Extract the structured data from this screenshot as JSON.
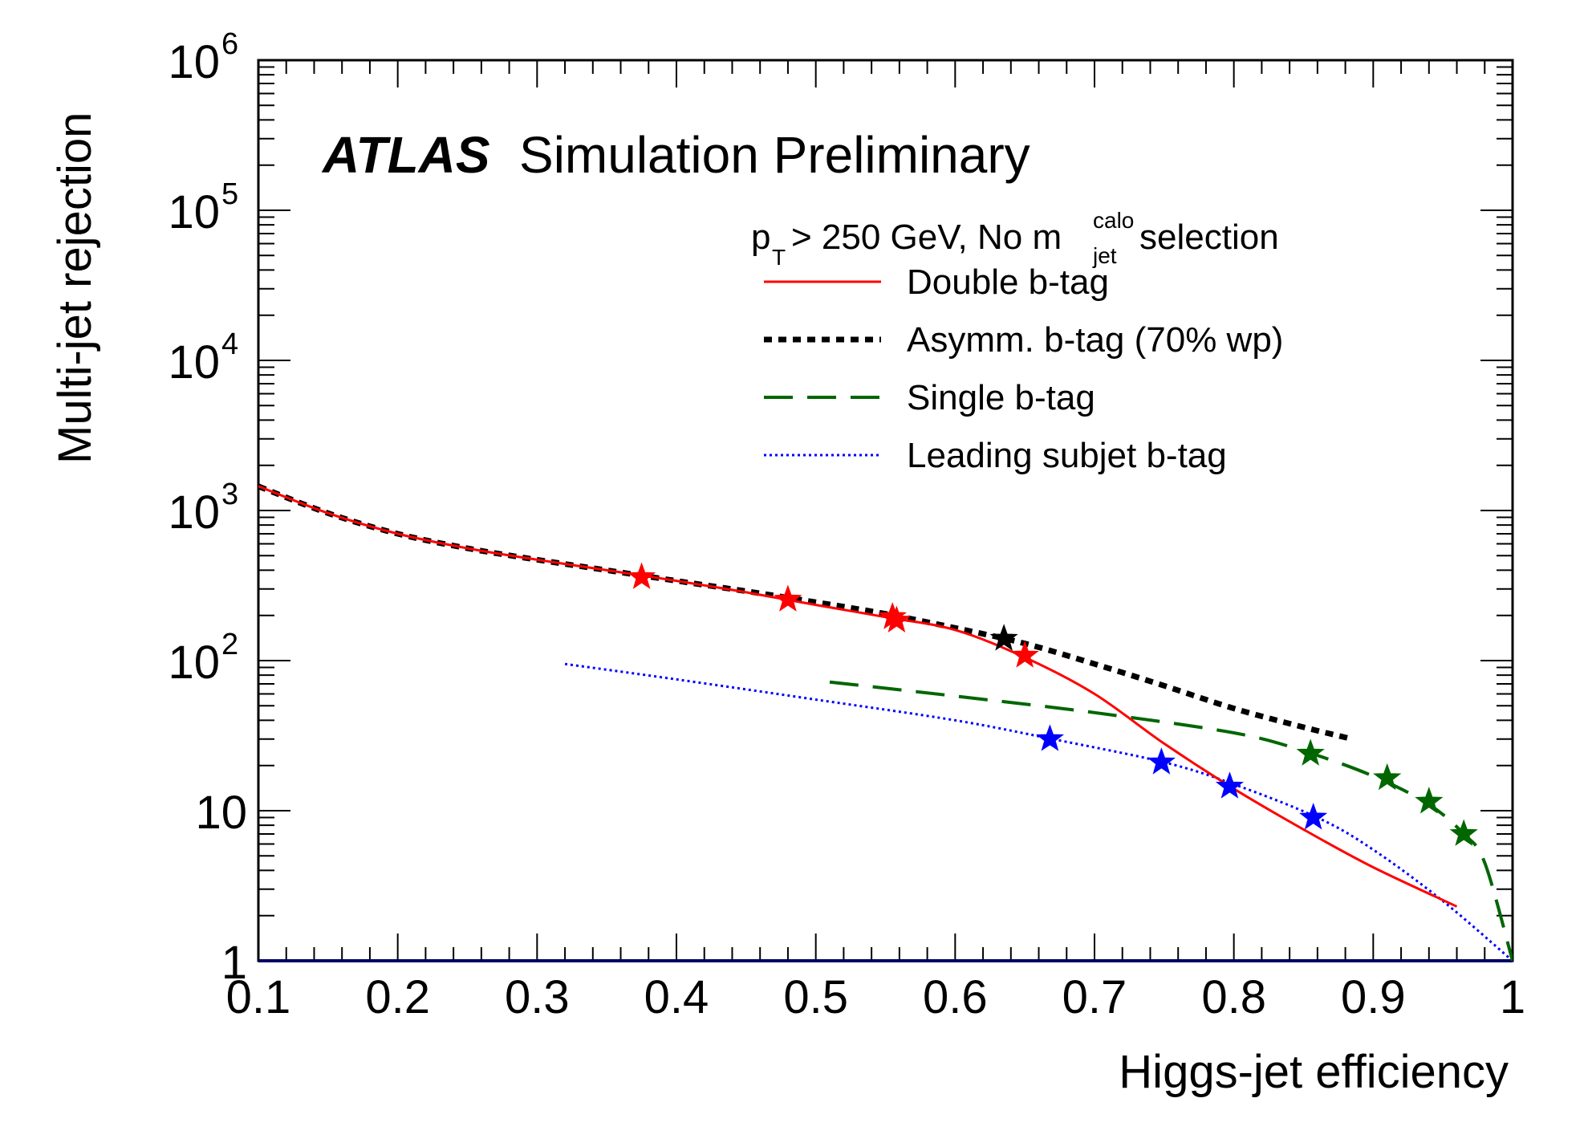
{
  "chart_data": {
    "type": "line",
    "title": "",
    "experiment_label": "ATLAS",
    "experiment_sublabel": "Simulation Preliminary",
    "selection_text": {
      "main": "p",
      "sub": "T",
      "rest": " > 250 GeV, No m",
      "m_sup": "calo",
      "m_sub": "jet",
      "tail": " selection"
    },
    "xlabel": "Higgs-jet efficiency",
    "ylabel": "Multi-jet rejection",
    "xlim": [
      0.1,
      1.0
    ],
    "ylim": [
      1,
      1000000
    ],
    "yscale": "log",
    "x_ticks": [
      0.1,
      0.2,
      0.3,
      0.4,
      0.5,
      0.6,
      0.7,
      0.8,
      0.9,
      1.0
    ],
    "x_tick_labels": [
      "0.1",
      "0.2",
      "0.3",
      "0.4",
      "0.5",
      "0.6",
      "0.7",
      "0.8",
      "0.9",
      "1"
    ],
    "y_tick_labels": [
      {
        "value": 1,
        "base": "1",
        "exp": ""
      },
      {
        "value": 10,
        "base": "10",
        "exp": ""
      },
      {
        "value": 100,
        "base": "10",
        "exp": "2"
      },
      {
        "value": 1000,
        "base": "10",
        "exp": "3"
      },
      {
        "value": 10000,
        "base": "10",
        "exp": "4"
      },
      {
        "value": 100000,
        "base": "10",
        "exp": "5"
      },
      {
        "value": 1000000,
        "base": "10",
        "exp": "6"
      }
    ],
    "legend_position": "top-right",
    "series": [
      {
        "name": "Double b-tag",
        "color": "#ff0000",
        "style": "solid",
        "x": [
          0.1,
          0.15,
          0.2,
          0.25,
          0.3,
          0.35,
          0.4,
          0.45,
          0.5,
          0.55,
          0.6,
          0.65,
          0.7,
          0.75,
          0.8,
          0.85,
          0.9,
          0.96
        ],
        "y": [
          1450,
          960,
          700,
          560,
          470,
          400,
          340,
          285,
          235,
          195,
          160,
          105,
          60,
          28,
          14,
          7.5,
          4.2,
          2.3
        ],
        "markers": {
          "x": [
            0.375,
            0.48,
            0.555,
            0.558,
            0.65
          ],
          "y": [
            360,
            255,
            195,
            185,
            108
          ]
        }
      },
      {
        "name": "Asymm. b-tag (70% wp)",
        "color": "#000000",
        "style": "dotted-thick",
        "x": [
          0.1,
          0.15,
          0.2,
          0.25,
          0.3,
          0.35,
          0.4,
          0.45,
          0.5,
          0.55,
          0.6,
          0.65,
          0.7,
          0.75,
          0.8,
          0.85,
          0.885
        ],
        "y": [
          1450,
          960,
          700,
          560,
          470,
          400,
          340,
          290,
          245,
          205,
          165,
          130,
          95,
          68,
          48,
          36,
          30
        ],
        "markers": {
          "x": [
            0.555,
            0.635
          ],
          "y": [
            195,
            140
          ]
        }
      },
      {
        "name": "Single b-tag",
        "color": "#006600",
        "style": "dashed",
        "x": [
          0.51,
          0.6,
          0.7,
          0.8,
          0.85,
          0.9,
          0.94,
          0.965,
          0.98,
          1.0
        ],
        "y": [
          72,
          58,
          45,
          33,
          25,
          17,
          11,
          7,
          4.5,
          1.0
        ],
        "markers": {
          "x": [
            0.855,
            0.91,
            0.94,
            0.965
          ],
          "y": [
            24,
            16.5,
            11.5,
            7
          ]
        }
      },
      {
        "name": "Leading subjet b-tag",
        "color": "#0000ff",
        "style": "dotted",
        "x": [
          0.32,
          0.4,
          0.5,
          0.6,
          0.67,
          0.75,
          0.8,
          0.86,
          0.9,
          0.95,
          1.0
        ],
        "y": [
          95,
          75,
          55,
          40,
          30,
          21,
          15,
          9,
          5.5,
          2.5,
          1.0
        ],
        "markers": {
          "x": [
            0.668,
            0.748,
            0.797,
            0.857
          ],
          "y": [
            30,
            21,
            14.5,
            9
          ]
        }
      }
    ]
  }
}
